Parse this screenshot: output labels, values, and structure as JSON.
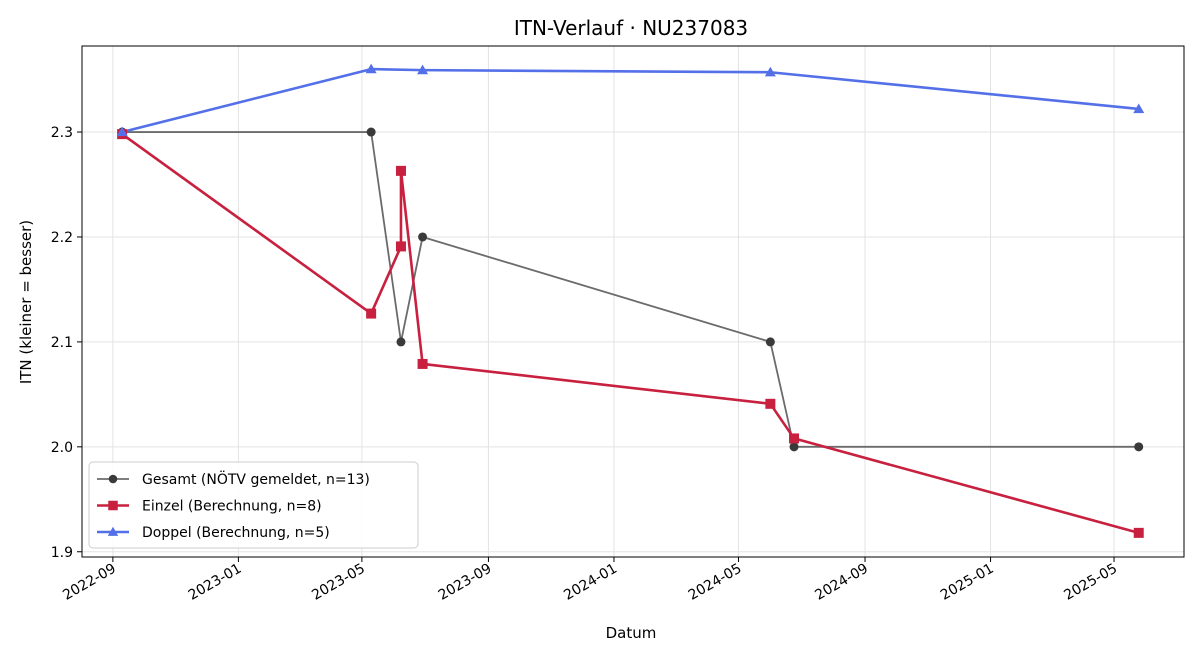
{
  "chart_data": {
    "type": "line",
    "title": "ITN-Verlauf · NU237083",
    "xlabel": "Datum",
    "ylabel": "ITN  (kleiner = besser)",
    "x_axis": {
      "kind": "date",
      "range": [
        "2022-08-02",
        "2025-07-08"
      ],
      "ticks": [
        "2022-09",
        "2023-01",
        "2023-05",
        "2023-09",
        "2024-01",
        "2024-05",
        "2024-09",
        "2025-01",
        "2025-05"
      ]
    },
    "y_axis": {
      "range": [
        1.895,
        2.382
      ],
      "ticks": [
        "1.9",
        "2.0",
        "2.1",
        "2.2",
        "2.3"
      ]
    },
    "grid": true,
    "legend_position": "bottom-left",
    "series": [
      {
        "name": "Gesamt (NÖTV gemeldet, n=13)",
        "color": "#6b6b6b",
        "marker": "circle",
        "points": [
          {
            "x": "2022-09-10",
            "y": 2.3
          },
          {
            "x": "2023-05-10",
            "y": 2.3
          },
          {
            "x": "2023-06-08",
            "y": 2.1
          },
          {
            "x": "2023-06-29",
            "y": 2.2
          },
          {
            "x": "2024-06-01",
            "y": 2.1
          },
          {
            "x": "2024-06-24",
            "y": 2.0
          },
          {
            "x": "2025-05-25",
            "y": 2.0
          }
        ]
      },
      {
        "name": "Einzel (Berechnung, n=8)",
        "color": "#c8203f",
        "marker": "square",
        "points": [
          {
            "x": "2022-09-10",
            "y": 2.298
          },
          {
            "x": "2023-05-10",
            "y": 2.127
          },
          {
            "x": "2023-06-08",
            "y": 2.191
          },
          {
            "x": "2023-06-08",
            "y": 2.263
          },
          {
            "x": "2023-06-29",
            "y": 2.079
          },
          {
            "x": "2024-06-01",
            "y": 2.041
          },
          {
            "x": "2024-06-24",
            "y": 2.008
          },
          {
            "x": "2025-05-25",
            "y": 1.918
          }
        ]
      },
      {
        "name": "Doppel (Berechnung, n=5)",
        "color": "#5470e8",
        "marker": "triangle",
        "points": [
          {
            "x": "2022-09-10",
            "y": 2.3
          },
          {
            "x": "2023-05-10",
            "y": 2.36
          },
          {
            "x": "2023-06-29",
            "y": 2.359
          },
          {
            "x": "2024-06-01",
            "y": 2.357
          },
          {
            "x": "2025-05-25",
            "y": 2.322
          }
        ]
      }
    ]
  }
}
